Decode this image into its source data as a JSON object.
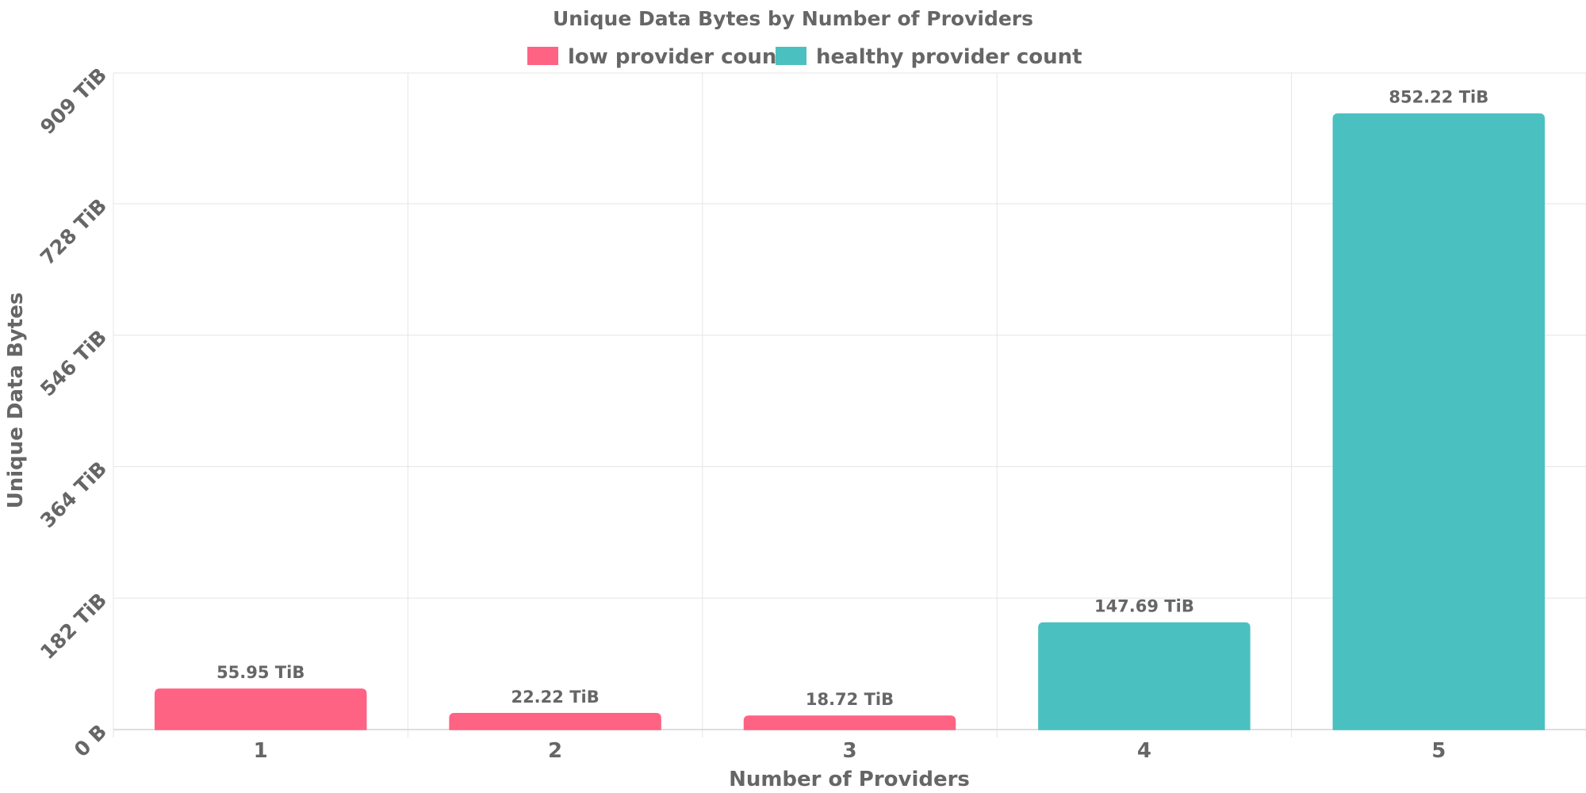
{
  "chart_data": {
    "type": "bar",
    "title": "Unique Data Bytes by Number of Providers",
    "xlabel": "Number of Providers",
    "ylabel": "Unique Data Bytes",
    "categories": [
      "1",
      "2",
      "3",
      "4",
      "5"
    ],
    "values": [
      55.95,
      22.22,
      18.72,
      147.69,
      852.22
    ],
    "value_unit": "TiB",
    "data_labels": [
      "55.95 TiB",
      "22.22 TiB",
      "18.72 TiB",
      "147.69 TiB",
      "852.22 TiB"
    ],
    "bar_series": [
      "low provider count",
      "low provider count",
      "low provider count",
      "healthy provider count",
      "healthy provider count"
    ],
    "y_ticks": [
      0,
      182,
      364,
      546,
      728,
      909
    ],
    "y_tick_labels": [
      "0 B",
      "182 TiB",
      "364 TiB",
      "546 TiB",
      "728 TiB",
      "909 TiB"
    ],
    "ylim": [
      0,
      909
    ],
    "grid": true,
    "legend_position": "top-center",
    "series": [
      {
        "name": "low provider count",
        "color": "#ff6384"
      },
      {
        "name": "healthy provider count",
        "color": "#4bc0c0"
      }
    ]
  }
}
